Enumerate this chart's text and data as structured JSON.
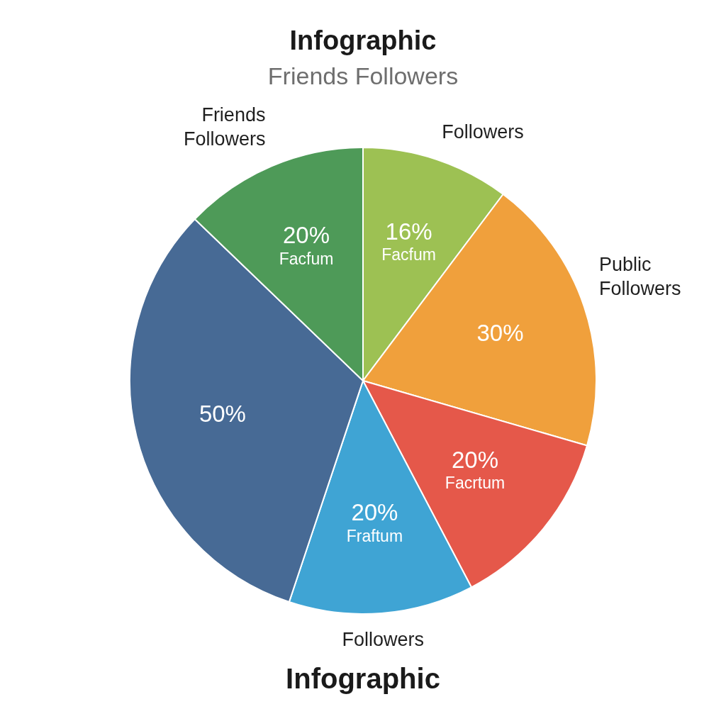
{
  "chart_data": {
    "type": "pie",
    "title": "Infographic",
    "subtitle": "Friends Followers",
    "categories": [
      "Followers",
      "Public Followers",
      null,
      "Followers",
      null,
      "Friends Followers"
    ],
    "values": [
      16,
      30,
      20,
      20,
      50,
      20
    ],
    "colors": [
      "#9dc153",
      "#f0a03c",
      "#e5584a",
      "#3fa4d4",
      "#476a95",
      "#4e9a58"
    ],
    "value_labels": [
      "16%\nFacfum",
      "30%",
      "20%\nFacrtum",
      "20%\nFraftum",
      "50%",
      "20%\nFacfum"
    ],
    "annotations": [
      "Infographic"
    ]
  }
}
